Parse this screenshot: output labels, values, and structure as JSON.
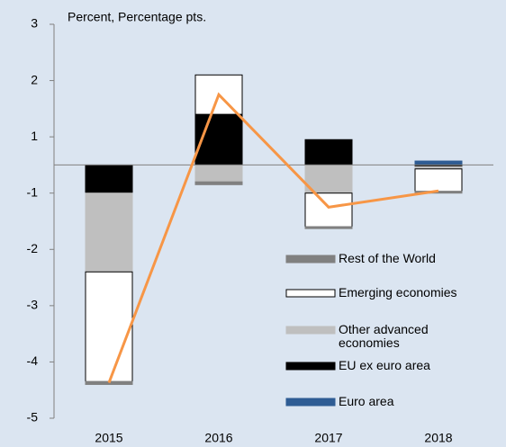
{
  "chart_data": {
    "type": "bar",
    "stacked": true,
    "title": "Percent, Percentage pts.",
    "categories": [
      "2015",
      "2016",
      "2017",
      "2018"
    ],
    "series": [
      {
        "name": "Euro area",
        "color": "#2e5c94",
        "values": [
          0,
          0,
          0,
          0.07
        ]
      },
      {
        "name": "EU ex euro area",
        "color": "#000000",
        "values": [
          -0.5,
          0.9,
          0.45,
          -0.03
        ]
      },
      {
        "name": "Other advanced economies",
        "color": "#bfbfbf",
        "values": [
          -1.4,
          -0.3,
          -0.5,
          -0.04
        ]
      },
      {
        "name": "Emerging economies",
        "color": "#ffffff",
        "values": [
          -1.95,
          0.7,
          -0.6,
          -0.4
        ]
      },
      {
        "name": "Rest of the World",
        "color": "#808080",
        "values": [
          -0.05,
          -0.05,
          -0.03,
          -0.03
        ]
      }
    ],
    "line": {
      "color": "#f79646",
      "values": [
        -3.87,
        1.25,
        -0.75,
        -0.46
      ]
    },
    "ylim": [
      -4.5,
      2.5
    ],
    "yticks": [
      {
        "value": 2.5,
        "label": "3"
      },
      {
        "value": 1.5,
        "label": "2"
      },
      {
        "value": 0.5,
        "label": "1"
      },
      {
        "value": -0.5,
        "label": "-1"
      },
      {
        "value": -1.5,
        "label": "-2"
      },
      {
        "value": -2.5,
        "label": "-3"
      },
      {
        "value": -3.5,
        "label": "-4"
      },
      {
        "value": -4.5,
        "label": "-5"
      }
    ]
  }
}
